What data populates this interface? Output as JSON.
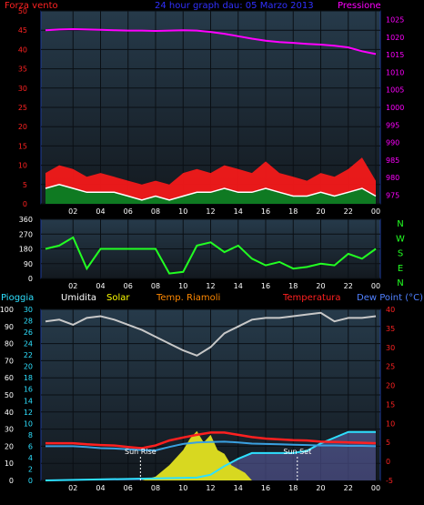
{
  "colors": {
    "bg": "#000000",
    "plot_bg_top": "#263a4a",
    "plot_bg_bottom": "#13191f",
    "frame": "#1d3a9a",
    "grid": "#0a0f14",
    "wind_gust": "#ff1a1a",
    "wind_avg": "#ffffff",
    "wind_fill": "#0f7a22",
    "pressure": "#ff00ff",
    "direction": "#22ff22",
    "humidity": "#c8c8c8",
    "temperature": "#ff2020",
    "dewpoint": "#3aa0e0",
    "solar": "#ffff00",
    "solar_fill": "#d8d820",
    "rain": "#2ee0ff",
    "rain_fill": "#9090ff",
    "marker": "#ffffff",
    "title": "#3030ff",
    "left_red": "#ff2222",
    "pink_axis": "#ff00ff",
    "green_axis": "#22ff22",
    "cyan": "#2ee0ff",
    "orange": "#ff8800",
    "white": "#ffffff",
    "yellow": "#ffff00",
    "dew_label": "#5080ff"
  },
  "header": {
    "left_label": "Forza vento",
    "title": "24 hour graph dau: 05 Marzo 2013",
    "right_label": "Pressione"
  },
  "legend": {
    "rain": "Pioggia",
    "humidity": "Umidita",
    "solar": "Solar",
    "feels": "Temp. Riamoli",
    "temperature": "Temperatura",
    "dewpoint": "Dew Point (°C)"
  },
  "chart_data": [
    {
      "type": "line",
      "name": "wind-pressure",
      "x_ticks": [
        "02",
        "04",
        "06",
        "08",
        "10",
        "12",
        "14",
        "16",
        "18",
        "20",
        "22",
        "00"
      ],
      "left_ticks": [
        "0",
        "5",
        "10",
        "15",
        "20",
        "25",
        "30",
        "35",
        "40",
        "45",
        "50"
      ],
      "right_ticks": [
        "975",
        "980",
        "985",
        "990",
        "995",
        "1000",
        "1005",
        "1010",
        "1015",
        "1020",
        "1025"
      ],
      "ylim_left": [
        0,
        50
      ],
      "ylim_right": [
        972.5,
        1027.5
      ],
      "series": [
        {
          "name": "Pressione",
          "axis": "right",
          "x": [
            0,
            1,
            2,
            3,
            4,
            5,
            6,
            7,
            8,
            9,
            10,
            11,
            12,
            13,
            14,
            15,
            16,
            17,
            18,
            19,
            20,
            21,
            22,
            23,
            24
          ],
          "values": [
            1022,
            1022.2,
            1022.3,
            1022.2,
            1022.1,
            1022,
            1021.9,
            1021.9,
            1021.8,
            1021.9,
            1022,
            1021.9,
            1021.5,
            1021,
            1020.3,
            1019.6,
            1019,
            1018.6,
            1018.4,
            1018.1,
            1017.9,
            1017.6,
            1017.1,
            1016,
            1015.2
          ]
        },
        {
          "name": "gust",
          "axis": "left",
          "x": [
            0,
            1,
            2,
            3,
            4,
            5,
            6,
            7,
            8,
            9,
            10,
            11,
            12,
            13,
            14,
            15,
            16,
            17,
            18,
            19,
            20,
            21,
            22,
            23,
            24
          ],
          "values": [
            8,
            10,
            9,
            7,
            8,
            7,
            6,
            5,
            6,
            5,
            8,
            9,
            8,
            10,
            9,
            8,
            11,
            8,
            7,
            6,
            8,
            7,
            9,
            12,
            6
          ]
        },
        {
          "name": "average",
          "axis": "left",
          "x": [
            0,
            1,
            2,
            3,
            4,
            5,
            6,
            7,
            8,
            9,
            10,
            11,
            12,
            13,
            14,
            15,
            16,
            17,
            18,
            19,
            20,
            21,
            22,
            23,
            24
          ],
          "values": [
            4,
            5,
            4,
            3,
            3,
            3,
            2,
            1,
            2,
            1,
            2,
            3,
            3,
            4,
            3,
            3,
            4,
            3,
            2,
            2,
            3,
            2,
            3,
            4,
            2
          ]
        }
      ]
    },
    {
      "type": "line",
      "name": "wind-direction",
      "x_ticks": [
        "02",
        "04",
        "06",
        "08",
        "10",
        "12",
        "14",
        "16",
        "18",
        "20",
        "22",
        "00"
      ],
      "left_ticks": [
        "0",
        "90",
        "180",
        "270",
        "360"
      ],
      "right_labels": [
        "N",
        "W",
        "S",
        "E",
        "N"
      ],
      "ylim": [
        0,
        360
      ],
      "series": [
        {
          "name": "direction",
          "x": [
            0,
            1,
            2,
            3,
            4,
            5,
            6,
            7,
            8,
            9,
            10,
            11,
            12,
            13,
            14,
            15,
            16,
            17,
            18,
            19,
            20,
            21,
            22,
            23,
            24
          ],
          "values": [
            180,
            200,
            250,
            60,
            180,
            180,
            180,
            180,
            180,
            30,
            40,
            200,
            220,
            160,
            200,
            120,
            80,
            100,
            60,
            70,
            90,
            80,
            150,
            120,
            180
          ]
        }
      ]
    },
    {
      "type": "line",
      "name": "temperature-humidity-rain",
      "x_ticks": [
        "02",
        "04",
        "06",
        "08",
        "10",
        "12",
        "14",
        "16",
        "18",
        "20",
        "22",
        "00"
      ],
      "left_ticks": [
        "0",
        "10",
        "20",
        "30",
        "40",
        "50",
        "60",
        "70",
        "80",
        "90",
        "100"
      ],
      "mid_ticks": [
        "0",
        "2",
        "4",
        "6",
        "8",
        "10",
        "12",
        "14",
        "16",
        "18",
        "20",
        "22",
        "24",
        "26",
        "28",
        "30"
      ],
      "right_ticks": [
        "-5",
        "0",
        "5",
        "10",
        "15",
        "20",
        "25",
        "30",
        "35",
        "40"
      ],
      "ylim_left": [
        0,
        100
      ],
      "ylim_right": [
        -5,
        40
      ],
      "markers": [
        {
          "label": "Sun Rise",
          "x": 6.9
        },
        {
          "label": "Sun Set",
          "x": 18.3
        }
      ],
      "series": [
        {
          "name": "Umidita",
          "axis": "left",
          "x": [
            0,
            1,
            2,
            3,
            4,
            5,
            6,
            7,
            8,
            9,
            10,
            11,
            12,
            13,
            14,
            15,
            16,
            17,
            18,
            19,
            20,
            21,
            22,
            23,
            24
          ],
          "values": [
            93,
            94,
            91,
            95,
            96,
            94,
            91,
            88,
            84,
            80,
            76,
            73,
            78,
            86,
            90,
            94,
            95,
            95,
            96,
            97,
            98,
            93,
            95,
            95,
            96
          ]
        },
        {
          "name": "Temperatura",
          "axis": "right",
          "x": [
            0,
            1,
            2,
            3,
            4,
            5,
            6,
            7,
            8,
            9,
            10,
            11,
            12,
            13,
            14,
            15,
            16,
            17,
            18,
            19,
            20,
            21,
            22,
            23,
            24
          ],
          "values": [
            4.8,
            4.8,
            4.8,
            4.5,
            4.3,
            4.2,
            3.8,
            3.5,
            4.2,
            5.5,
            6.3,
            7,
            7.6,
            7.6,
            7,
            6.4,
            6,
            5.8,
            5.6,
            5.5,
            5.2,
            5.1,
            5,
            4.9,
            4.8
          ]
        },
        {
          "name": "Dew Point",
          "axis": "right",
          "x": [
            0,
            1,
            2,
            3,
            4,
            5,
            6,
            7,
            8,
            9,
            10,
            11,
            12,
            13,
            14,
            15,
            16,
            17,
            18,
            19,
            20,
            21,
            22,
            23,
            24
          ],
          "values": [
            4,
            4,
            4,
            3.8,
            3.5,
            3.4,
            3.2,
            3,
            2.9,
            3.8,
            4.6,
            5,
            5.1,
            5.2,
            5,
            4.7,
            4.6,
            4.5,
            4.4,
            4.3,
            4.2,
            4.2,
            4.1,
            4.1,
            4
          ]
        },
        {
          "name": "Solar",
          "axis": "right",
          "x": [
            7,
            8,
            9,
            10,
            10.5,
            11,
            11.5,
            12,
            12.5,
            13,
            13.5,
            14,
            14.5,
            15
          ],
          "values": [
            -5,
            -4,
            -1,
            3,
            6,
            8,
            5,
            7,
            3,
            2,
            -1,
            -2,
            -3,
            -5
          ]
        },
        {
          "name": "Pioggia",
          "axis": "mid",
          "x": [
            0,
            11,
            12,
            13,
            14,
            15,
            16,
            17,
            18,
            19,
            20,
            21,
            22,
            23,
            24
          ],
          "values": [
            0,
            0.5,
            1,
            2.5,
            3.8,
            4.8,
            4.8,
            4.8,
            4.8,
            5.2,
            6.5,
            7.5,
            8.5,
            8.5,
            8.5
          ]
        }
      ]
    }
  ]
}
